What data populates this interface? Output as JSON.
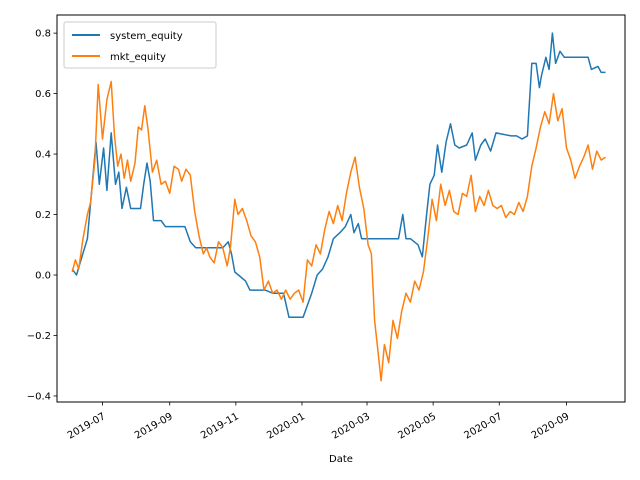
{
  "chart_data": {
    "type": "line",
    "title": "",
    "xlabel": "Date",
    "ylabel": "",
    "x_axis": {
      "kind": "date",
      "range": [
        "2019-05-20",
        "2020-10-25"
      ]
    },
    "ylim": [
      -0.42,
      0.86
    ],
    "grid": false,
    "legend_position": "upper-left",
    "x_ticks": [
      {
        "date": "2019-07-01",
        "label": "2019-07"
      },
      {
        "date": "2019-09-01",
        "label": "2019-09"
      },
      {
        "date": "2019-11-01",
        "label": "2019-11"
      },
      {
        "date": "2020-01-01",
        "label": "2020-01"
      },
      {
        "date": "2020-03-01",
        "label": "2020-03"
      },
      {
        "date": "2020-05-01",
        "label": "2020-05"
      },
      {
        "date": "2020-07-01",
        "label": "2020-07"
      },
      {
        "date": "2020-09-01",
        "label": "2020-09"
      }
    ],
    "y_ticks": [
      {
        "value": -0.4,
        "label": "−0.4"
      },
      {
        "value": -0.2,
        "label": "−0.2"
      },
      {
        "value": 0.0,
        "label": "0.0"
      },
      {
        "value": 0.2,
        "label": "0.2"
      },
      {
        "value": 0.4,
        "label": "0.4"
      },
      {
        "value": 0.6,
        "label": "0.6"
      },
      {
        "value": 0.8,
        "label": "0.8"
      }
    ],
    "series": [
      {
        "name": "system_equity",
        "color": "#1f77b4",
        "points": [
          [
            "2019-06-03",
            0.02
          ],
          [
            "2019-06-07",
            0.0
          ],
          [
            "2019-06-12",
            0.06
          ],
          [
            "2019-06-17",
            0.12
          ],
          [
            "2019-06-21",
            0.28
          ],
          [
            "2019-06-25",
            0.44
          ],
          [
            "2019-06-28",
            0.3
          ],
          [
            "2019-07-02",
            0.42
          ],
          [
            "2019-07-05",
            0.28
          ],
          [
            "2019-07-09",
            0.47
          ],
          [
            "2019-07-13",
            0.3
          ],
          [
            "2019-07-16",
            0.34
          ],
          [
            "2019-07-19",
            0.22
          ],
          [
            "2019-07-23",
            0.29
          ],
          [
            "2019-07-27",
            0.22
          ],
          [
            "2019-08-05",
            0.22
          ],
          [
            "2019-08-08",
            0.3
          ],
          [
            "2019-08-11",
            0.37
          ],
          [
            "2019-08-14",
            0.31
          ],
          [
            "2019-08-17",
            0.18
          ],
          [
            "2019-08-24",
            0.18
          ],
          [
            "2019-08-28",
            0.16
          ],
          [
            "2019-09-15",
            0.16
          ],
          [
            "2019-09-20",
            0.11
          ],
          [
            "2019-09-25",
            0.09
          ],
          [
            "2019-10-20",
            0.09
          ],
          [
            "2019-10-25",
            0.11
          ],
          [
            "2019-10-28",
            0.07
          ],
          [
            "2019-10-31",
            0.01
          ],
          [
            "2019-11-10",
            -0.02
          ],
          [
            "2019-11-14",
            -0.05
          ],
          [
            "2019-11-28",
            -0.05
          ],
          [
            "2019-12-05",
            -0.06
          ],
          [
            "2019-12-15",
            -0.06
          ],
          [
            "2019-12-20",
            -0.14
          ],
          [
            "2019-12-30",
            -0.14
          ],
          [
            "2020-01-02",
            -0.14
          ],
          [
            "2020-01-06",
            -0.1
          ],
          [
            "2020-01-10",
            -0.06
          ],
          [
            "2020-01-15",
            0.0
          ],
          [
            "2020-01-20",
            0.02
          ],
          [
            "2020-01-25",
            0.06
          ],
          [
            "2020-01-30",
            0.12
          ],
          [
            "2020-02-05",
            0.14
          ],
          [
            "2020-02-10",
            0.16
          ],
          [
            "2020-02-15",
            0.2
          ],
          [
            "2020-02-18",
            0.14
          ],
          [
            "2020-02-22",
            0.17
          ],
          [
            "2020-02-25",
            0.12
          ],
          [
            "2020-02-29",
            0.12
          ],
          [
            "2020-03-10",
            0.12
          ],
          [
            "2020-03-20",
            0.12
          ],
          [
            "2020-03-30",
            0.12
          ],
          [
            "2020-04-03",
            0.2
          ],
          [
            "2020-04-06",
            0.12
          ],
          [
            "2020-04-10",
            0.12
          ],
          [
            "2020-04-17",
            0.1
          ],
          [
            "2020-04-21",
            0.06
          ],
          [
            "2020-04-25",
            0.2
          ],
          [
            "2020-04-28",
            0.3
          ],
          [
            "2020-05-02",
            0.33
          ],
          [
            "2020-05-05",
            0.43
          ],
          [
            "2020-05-09",
            0.34
          ],
          [
            "2020-05-13",
            0.44
          ],
          [
            "2020-05-17",
            0.5
          ],
          [
            "2020-05-21",
            0.43
          ],
          [
            "2020-05-25",
            0.42
          ],
          [
            "2020-06-01",
            0.43
          ],
          [
            "2020-06-06",
            0.47
          ],
          [
            "2020-06-09",
            0.38
          ],
          [
            "2020-06-14",
            0.43
          ],
          [
            "2020-06-18",
            0.45
          ],
          [
            "2020-06-23",
            0.41
          ],
          [
            "2020-06-28",
            0.47
          ],
          [
            "2020-07-12",
            0.46
          ],
          [
            "2020-07-17",
            0.46
          ],
          [
            "2020-07-22",
            0.45
          ],
          [
            "2020-07-27",
            0.46
          ],
          [
            "2020-07-31",
            0.7
          ],
          [
            "2020-08-04",
            0.7
          ],
          [
            "2020-08-07",
            0.62
          ],
          [
            "2020-08-09",
            0.66
          ],
          [
            "2020-08-13",
            0.72
          ],
          [
            "2020-08-16",
            0.68
          ],
          [
            "2020-08-19",
            0.8
          ],
          [
            "2020-08-22",
            0.7
          ],
          [
            "2020-08-26",
            0.74
          ],
          [
            "2020-08-30",
            0.72
          ],
          [
            "2020-09-10",
            0.72
          ],
          [
            "2020-09-21",
            0.72
          ],
          [
            "2020-09-24",
            0.68
          ],
          [
            "2020-09-30",
            0.69
          ],
          [
            "2020-10-03",
            0.67
          ],
          [
            "2020-10-07",
            0.67
          ]
        ]
      },
      {
        "name": "mkt_equity",
        "color": "#ff7f0e",
        "points": [
          [
            "2019-06-03",
            0.01
          ],
          [
            "2019-06-06",
            0.05
          ],
          [
            "2019-06-09",
            0.02
          ],
          [
            "2019-06-13",
            0.12
          ],
          [
            "2019-06-17",
            0.2
          ],
          [
            "2019-06-20",
            0.24
          ],
          [
            "2019-06-24",
            0.38
          ],
          [
            "2019-06-27",
            0.63
          ],
          [
            "2019-07-01",
            0.45
          ],
          [
            "2019-07-05",
            0.58
          ],
          [
            "2019-07-09",
            0.64
          ],
          [
            "2019-07-12",
            0.46
          ],
          [
            "2019-07-15",
            0.36
          ],
          [
            "2019-07-18",
            0.4
          ],
          [
            "2019-07-21",
            0.32
          ],
          [
            "2019-07-24",
            0.38
          ],
          [
            "2019-07-27",
            0.31
          ],
          [
            "2019-07-31",
            0.37
          ],
          [
            "2019-08-03",
            0.49
          ],
          [
            "2019-08-06",
            0.48
          ],
          [
            "2019-08-09",
            0.56
          ],
          [
            "2019-08-12",
            0.48
          ],
          [
            "2019-08-16",
            0.34
          ],
          [
            "2019-08-20",
            0.38
          ],
          [
            "2019-08-24",
            0.3
          ],
          [
            "2019-08-28",
            0.31
          ],
          [
            "2019-09-01",
            0.27
          ],
          [
            "2019-09-05",
            0.36
          ],
          [
            "2019-09-09",
            0.35
          ],
          [
            "2019-09-12",
            0.31
          ],
          [
            "2019-09-16",
            0.35
          ],
          [
            "2019-09-20",
            0.33
          ],
          [
            "2019-09-24",
            0.21
          ],
          [
            "2019-09-28",
            0.13
          ],
          [
            "2019-10-02",
            0.07
          ],
          [
            "2019-10-05",
            0.09
          ],
          [
            "2019-10-08",
            0.06
          ],
          [
            "2019-10-12",
            0.04
          ],
          [
            "2019-10-16",
            0.11
          ],
          [
            "2019-10-20",
            0.09
          ],
          [
            "2019-10-24",
            0.03
          ],
          [
            "2019-10-27",
            0.09
          ],
          [
            "2019-10-31",
            0.25
          ],
          [
            "2019-11-03",
            0.2
          ],
          [
            "2019-11-07",
            0.22
          ],
          [
            "2019-11-11",
            0.18
          ],
          [
            "2019-11-15",
            0.13
          ],
          [
            "2019-11-19",
            0.11
          ],
          [
            "2019-11-23",
            0.06
          ],
          [
            "2019-11-27",
            -0.05
          ],
          [
            "2019-12-01",
            -0.02
          ],
          [
            "2019-12-05",
            -0.06
          ],
          [
            "2019-12-09",
            -0.05
          ],
          [
            "2019-12-13",
            -0.08
          ],
          [
            "2019-12-17",
            -0.05
          ],
          [
            "2019-12-21",
            -0.08
          ],
          [
            "2019-12-25",
            -0.06
          ],
          [
            "2019-12-29",
            -0.05
          ],
          [
            "2020-01-02",
            -0.09
          ],
          [
            "2020-01-06",
            0.05
          ],
          [
            "2020-01-10",
            0.03
          ],
          [
            "2020-01-14",
            0.1
          ],
          [
            "2020-01-18",
            0.07
          ],
          [
            "2020-01-22",
            0.15
          ],
          [
            "2020-01-26",
            0.21
          ],
          [
            "2020-01-30",
            0.17
          ],
          [
            "2020-02-03",
            0.23
          ],
          [
            "2020-02-07",
            0.18
          ],
          [
            "2020-02-11",
            0.27
          ],
          [
            "2020-02-15",
            0.34
          ],
          [
            "2020-02-19",
            0.39
          ],
          [
            "2020-02-23",
            0.29
          ],
          [
            "2020-02-27",
            0.22
          ],
          [
            "2020-03-02",
            0.1
          ],
          [
            "2020-03-05",
            0.07
          ],
          [
            "2020-03-08",
            -0.15
          ],
          [
            "2020-03-11",
            -0.25
          ],
          [
            "2020-03-14",
            -0.35
          ],
          [
            "2020-03-17",
            -0.23
          ],
          [
            "2020-03-21",
            -0.29
          ],
          [
            "2020-03-25",
            -0.15
          ],
          [
            "2020-03-29",
            -0.21
          ],
          [
            "2020-04-02",
            -0.12
          ],
          [
            "2020-04-06",
            -0.06
          ],
          [
            "2020-04-10",
            -0.09
          ],
          [
            "2020-04-14",
            -0.02
          ],
          [
            "2020-04-18",
            -0.05
          ],
          [
            "2020-04-22",
            0.01
          ],
          [
            "2020-04-26",
            0.12
          ],
          [
            "2020-04-30",
            0.25
          ],
          [
            "2020-05-04",
            0.18
          ],
          [
            "2020-05-08",
            0.3
          ],
          [
            "2020-05-12",
            0.23
          ],
          [
            "2020-05-16",
            0.28
          ],
          [
            "2020-05-20",
            0.21
          ],
          [
            "2020-05-24",
            0.2
          ],
          [
            "2020-05-28",
            0.27
          ],
          [
            "2020-06-01",
            0.26
          ],
          [
            "2020-06-05",
            0.33
          ],
          [
            "2020-06-09",
            0.21
          ],
          [
            "2020-06-13",
            0.26
          ],
          [
            "2020-06-17",
            0.23
          ],
          [
            "2020-06-21",
            0.28
          ],
          [
            "2020-06-25",
            0.23
          ],
          [
            "2020-06-29",
            0.22
          ],
          [
            "2020-07-03",
            0.23
          ],
          [
            "2020-07-07",
            0.19
          ],
          [
            "2020-07-11",
            0.21
          ],
          [
            "2020-07-15",
            0.2
          ],
          [
            "2020-07-19",
            0.24
          ],
          [
            "2020-07-23",
            0.21
          ],
          [
            "2020-07-27",
            0.26
          ],
          [
            "2020-07-31",
            0.36
          ],
          [
            "2020-08-04",
            0.42
          ],
          [
            "2020-08-08",
            0.49
          ],
          [
            "2020-08-12",
            0.54
          ],
          [
            "2020-08-16",
            0.5
          ],
          [
            "2020-08-20",
            0.6
          ],
          [
            "2020-08-24",
            0.51
          ],
          [
            "2020-08-28",
            0.55
          ],
          [
            "2020-09-01",
            0.42
          ],
          [
            "2020-09-05",
            0.38
          ],
          [
            "2020-09-09",
            0.32
          ],
          [
            "2020-09-13",
            0.36
          ],
          [
            "2020-09-17",
            0.39
          ],
          [
            "2020-09-21",
            0.43
          ],
          [
            "2020-09-25",
            0.35
          ],
          [
            "2020-09-29",
            0.41
          ],
          [
            "2020-10-03",
            0.38
          ],
          [
            "2020-10-07",
            0.39
          ]
        ]
      }
    ]
  }
}
